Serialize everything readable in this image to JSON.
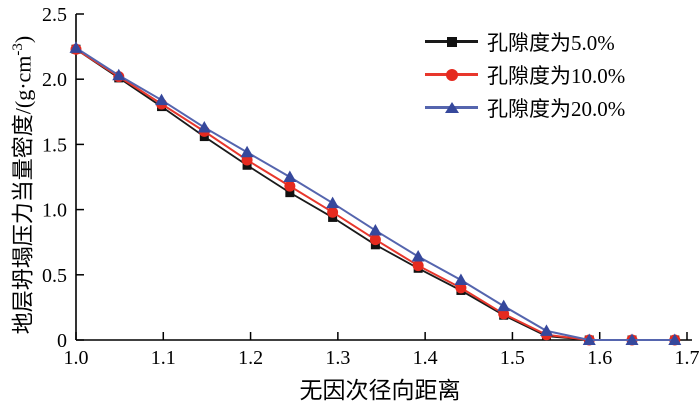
{
  "chart_data": {
    "type": "line",
    "title": "",
    "xlabel": "无因次径向距离",
    "ylabel": "地层坍塌压力当量密度/(g·cm⁻³)",
    "ylabel_parts": {
      "prefix": "地层坍塌压力当量密度/(g·cm",
      "sup": "-3",
      "suffix": ")"
    },
    "xlim": [
      1.0,
      1.7
    ],
    "ylim": [
      0,
      2.5
    ],
    "grid": false,
    "legend_position": "upper right",
    "x_ticks": [
      {
        "v": 1.0,
        "label": "1.0"
      },
      {
        "v": 1.1,
        "label": "1.1"
      },
      {
        "v": 1.2,
        "label": "1.2"
      },
      {
        "v": 1.3,
        "label": "1.3"
      },
      {
        "v": 1.4,
        "label": "1.4"
      },
      {
        "v": 1.5,
        "label": "1.5"
      },
      {
        "v": 1.6,
        "label": "1.6"
      },
      {
        "v": 1.7,
        "label": "1.7"
      }
    ],
    "y_ticks": [
      {
        "v": 0,
        "label": "0"
      },
      {
        "v": 0.5,
        "label": "0.5"
      },
      {
        "v": 1.0,
        "label": "1.0"
      },
      {
        "v": 1.5,
        "label": "1.5"
      },
      {
        "v": 2.0,
        "label": "2.0"
      },
      {
        "v": 2.5,
        "label": "2.5"
      }
    ],
    "x": [
      1.0,
      1.049,
      1.098,
      1.147,
      1.196,
      1.245,
      1.294,
      1.343,
      1.392,
      1.441,
      1.49,
      1.539,
      1.588,
      1.637,
      1.686
    ],
    "series": [
      {
        "name": "孔隙度为5.0%",
        "marker": "square",
        "line_color": "#1a1a1a",
        "marker_color": "#111111",
        "values": [
          2.23,
          2.01,
          1.79,
          1.56,
          1.34,
          1.13,
          0.94,
          0.73,
          0.55,
          0.38,
          0.19,
          0.03,
          0.0,
          0.0,
          0.0
        ]
      },
      {
        "name": "孔隙度为10.0%",
        "marker": "circle",
        "line_color": "#e8372c",
        "marker_color": "#e52a1f",
        "values": [
          2.23,
          2.02,
          1.81,
          1.6,
          1.38,
          1.18,
          0.98,
          0.77,
          0.57,
          0.4,
          0.2,
          0.04,
          0.0,
          0.0,
          0.0
        ]
      },
      {
        "name": "孔隙度为20.0%",
        "marker": "triangle",
        "line_color": "#5565ae",
        "marker_color": "#36489c",
        "values": [
          2.24,
          2.03,
          1.84,
          1.63,
          1.44,
          1.25,
          1.05,
          0.84,
          0.64,
          0.46,
          0.26,
          0.07,
          0.0,
          0.0,
          0.0
        ]
      }
    ]
  }
}
